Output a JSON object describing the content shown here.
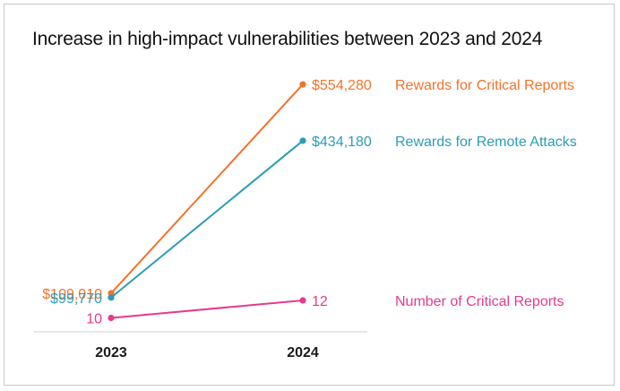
{
  "title": "Increase in high-impact vulnerabilities between 2023 and 2024",
  "chart_data": {
    "type": "line",
    "categories": [
      "2023",
      "2024"
    ],
    "series": [
      {
        "name": "Rewards for Critical Reports",
        "values": [
          109010,
          554280
        ],
        "labels": [
          "$109,010",
          "$554,280"
        ],
        "color": "#f2722b"
      },
      {
        "name": "Rewards for Remote Attacks",
        "values": [
          99770,
          434180
        ],
        "labels": [
          "$99,770",
          "$434,180"
        ],
        "color": "#2a9db5"
      },
      {
        "name": "Number of Critical Reports",
        "values": [
          10,
          12
        ],
        "labels": [
          "10",
          "12"
        ],
        "color": "#e63a8f"
      }
    ],
    "grid": false,
    "legend": "right"
  }
}
